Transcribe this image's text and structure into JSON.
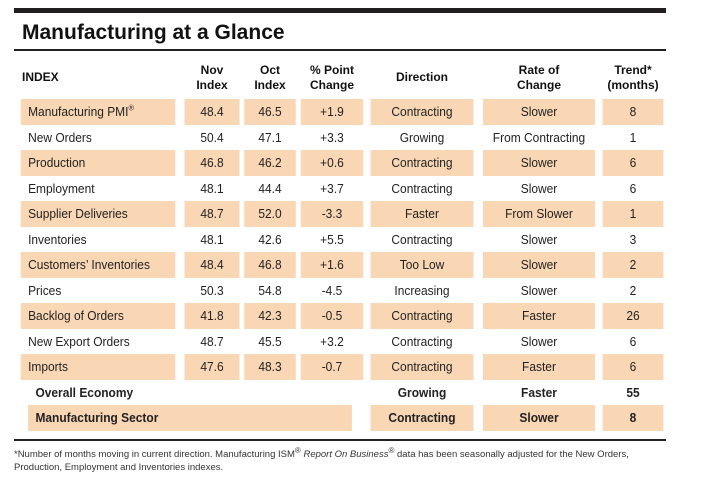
{
  "title": "Manufacturing at a Glance",
  "headers": {
    "index": "INDEX",
    "nov_line1": "Nov",
    "nov_line2": "Index",
    "oct_line1": "Oct",
    "oct_line2": "Index",
    "pct_line1": "% Point",
    "pct_line2": "Change",
    "direction": "Direction",
    "rate_line1": "Rate of",
    "rate_line2": "Change",
    "trend_line1": "Trend*",
    "trend_line2": "(months)"
  },
  "rows": [
    {
      "index": "Manufacturing PMI",
      "mark": "®",
      "nov": "48.4",
      "oct": "46.5",
      "change": "+1.9",
      "direction": "Contracting",
      "rate": "Slower",
      "trend": "8"
    },
    {
      "index": "New Orders",
      "nov": "50.4",
      "oct": "47.1",
      "change": "+3.3",
      "direction": "Growing",
      "rate": "From Contracting",
      "trend": "1"
    },
    {
      "index": "Production",
      "nov": "46.8",
      "oct": "46.2",
      "change": "+0.6",
      "direction": "Contracting",
      "rate": "Slower",
      "trend": "6"
    },
    {
      "index": "Employment",
      "nov": "48.1",
      "oct": "44.4",
      "change": "+3.7",
      "direction": "Contracting",
      "rate": "Slower",
      "trend": "6"
    },
    {
      "index": "Supplier Deliveries",
      "nov": "48.7",
      "oct": "52.0",
      "change": "-3.3",
      "direction": "Faster",
      "rate": "From Slower",
      "trend": "1"
    },
    {
      "index": "Inventories",
      "nov": "48.1",
      "oct": "42.6",
      "change": "+5.5",
      "direction": "Contracting",
      "rate": "Slower",
      "trend": "3"
    },
    {
      "index": "Customers’ Inventories",
      "nov": "48.4",
      "oct": "46.8",
      "change": "+1.6",
      "direction": "Too Low",
      "rate": "Slower",
      "trend": "2"
    },
    {
      "index": "Prices",
      "nov": "50.3",
      "oct": "54.8",
      "change": "-4.5",
      "direction": "Increasing",
      "rate": "Slower",
      "trend": "2"
    },
    {
      "index": "Backlog of Orders",
      "nov": "41.8",
      "oct": "42.3",
      "change": "-0.5",
      "direction": "Contracting",
      "rate": "Faster",
      "trend": "26"
    },
    {
      "index": "New Export Orders",
      "nov": "48.7",
      "oct": "45.5",
      "change": "+3.2",
      "direction": "Contracting",
      "rate": "Slower",
      "trend": "6"
    },
    {
      "index": "Imports",
      "nov": "47.6",
      "oct": "48.3",
      "change": "-0.7",
      "direction": "Contracting",
      "rate": "Faster",
      "trend": "6"
    }
  ],
  "summary": [
    {
      "index": "Overall Economy",
      "direction": "Growing",
      "rate": "Faster",
      "trend": "55"
    },
    {
      "index": "Manufacturing Sector",
      "direction": "Contracting",
      "rate": "Slower",
      "trend": "8"
    }
  ],
  "footnote": {
    "part1": "*Number of months moving in current direction. Manufacturing ISM",
    "mark1": "®",
    "italic": " Report On Business",
    "mark2": "®",
    "part2": " data has been seasonally adjusted for the New Orders, Production, Employment and Inventories indexes."
  },
  "colors": {
    "shade": "#f9d7b4",
    "rule": "#231f20"
  }
}
